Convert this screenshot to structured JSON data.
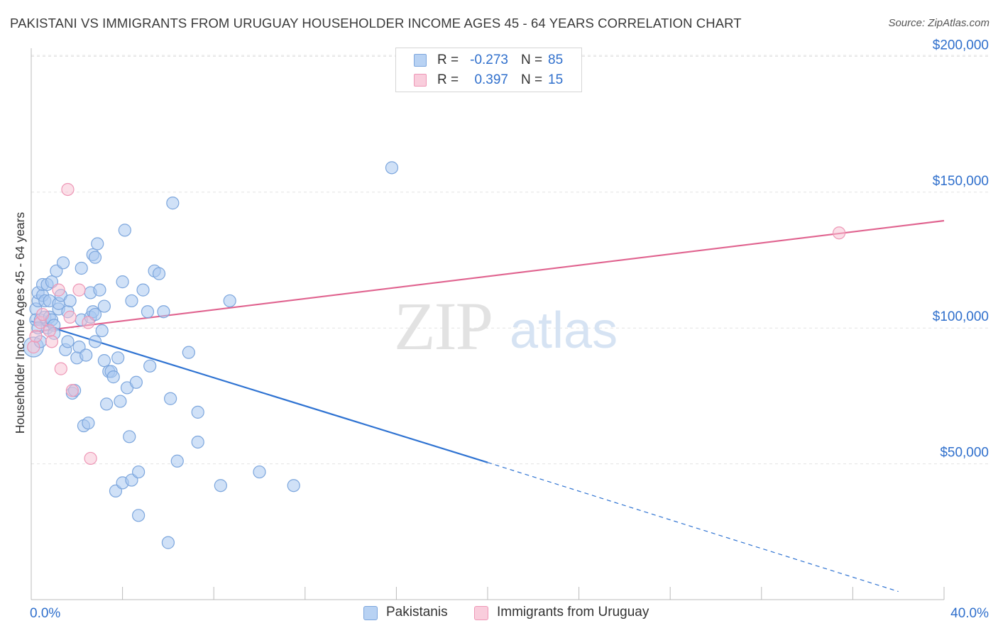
{
  "title": "PAKISTANI VS IMMIGRANTS FROM URUGUAY HOUSEHOLDER INCOME AGES 45 - 64 YEARS CORRELATION CHART",
  "source": "Source: ZipAtlas.com",
  "watermark": {
    "zip": "ZIP",
    "atlas": "atlas"
  },
  "legend_top": {
    "rows": [
      {
        "r_label": "R =",
        "r_value": "-0.273",
        "n_label": "N =",
        "n_value": "85"
      },
      {
        "r_label": "R =",
        "r_value": "0.397",
        "n_label": "N =",
        "n_value": "15"
      }
    ]
  },
  "colors": {
    "blue_fill": "#a9c8f0",
    "blue_stroke": "#7ca6dd",
    "blue_line": "#2f73d2",
    "pink_fill": "#f7c0d2",
    "pink_stroke": "#ee97b6",
    "pink_line": "#e0638f",
    "axis_text": "#2f6fcc",
    "grid": "#e3e3e3"
  },
  "chart_data": {
    "type": "scatter",
    "title": "PAKISTANI VS IMMIGRANTS FROM URUGUAY HOUSEHOLDER INCOME AGES 45 - 64 YEARS CORRELATION CHART",
    "xlabel": "",
    "ylabel": "Householder Income Ages 45 - 64 years",
    "xlim": [
      0,
      40
    ],
    "ylim": [
      0,
      210000
    ],
    "x_tick_labels": [
      "0.0%",
      "40.0%"
    ],
    "y_ticks": [
      50000,
      100000,
      150000,
      200000
    ],
    "y_tick_labels": [
      "$50,000",
      "$100,000",
      "$150,000",
      "$200,000"
    ],
    "grid": true,
    "legend_position": "bottom",
    "series": [
      {
        "name": "Pakistanis",
        "r": -0.273,
        "n": 85,
        "trend": {
          "x": [
            0,
            20
          ],
          "y": [
            102500,
            50500
          ],
          "dashed_to": [
            38,
            3000
          ]
        },
        "points": [
          [
            0.1,
            93000
          ],
          [
            0.2,
            107000
          ],
          [
            0.2,
            103000
          ],
          [
            0.3,
            110000
          ],
          [
            0.3,
            113000
          ],
          [
            0.4,
            95000
          ],
          [
            0.4,
            103000
          ],
          [
            0.5,
            112000
          ],
          [
            0.5,
            116000
          ],
          [
            0.6,
            104000
          ],
          [
            0.6,
            110000
          ],
          [
            0.7,
            100000
          ],
          [
            0.7,
            116000
          ],
          [
            0.8,
            110000
          ],
          [
            0.8,
            104000
          ],
          [
            0.9,
            103000
          ],
          [
            0.9,
            117000
          ],
          [
            1.0,
            101000
          ],
          [
            1.1,
            121000
          ],
          [
            1.2,
            107000
          ],
          [
            1.2,
            109000
          ],
          [
            1.3,
            112000
          ],
          [
            1.4,
            124000
          ],
          [
            1.5,
            92000
          ],
          [
            1.6,
            95000
          ],
          [
            1.6,
            106000
          ],
          [
            1.7,
            110000
          ],
          [
            1.8,
            76000
          ],
          [
            1.9,
            77000
          ],
          [
            2.0,
            89000
          ],
          [
            2.1,
            93000
          ],
          [
            2.2,
            103000
          ],
          [
            2.2,
            122000
          ],
          [
            2.3,
            64000
          ],
          [
            2.5,
            65000
          ],
          [
            2.6,
            104000
          ],
          [
            2.6,
            113000
          ],
          [
            2.7,
            106000
          ],
          [
            2.7,
            127000
          ],
          [
            2.8,
            105000
          ],
          [
            2.8,
            126000
          ],
          [
            2.8,
            95000
          ],
          [
            2.9,
            131000
          ],
          [
            3.0,
            114000
          ],
          [
            3.1,
            99000
          ],
          [
            3.2,
            108000
          ],
          [
            3.2,
            88000
          ],
          [
            3.3,
            72000
          ],
          [
            3.4,
            84000
          ],
          [
            3.5,
            84000
          ],
          [
            3.6,
            82000
          ],
          [
            3.7,
            40000
          ],
          [
            3.8,
            89000
          ],
          [
            3.9,
            73000
          ],
          [
            4.0,
            117000
          ],
          [
            4.0,
            43000
          ],
          [
            4.1,
            136000
          ],
          [
            4.2,
            78000
          ],
          [
            4.3,
            60000
          ],
          [
            4.4,
            110000
          ],
          [
            4.4,
            44000
          ],
          [
            4.6,
            80000
          ],
          [
            4.7,
            47000
          ],
          [
            4.7,
            31000
          ],
          [
            4.9,
            114000
          ],
          [
            5.1,
            106000
          ],
          [
            5.2,
            86000
          ],
          [
            5.4,
            121000
          ],
          [
            5.6,
            120000
          ],
          [
            5.8,
            106000
          ],
          [
            6.0,
            21000
          ],
          [
            6.1,
            74000
          ],
          [
            6.2,
            146000
          ],
          [
            6.4,
            51000
          ],
          [
            6.9,
            91000
          ],
          [
            7.3,
            69000
          ],
          [
            7.3,
            58000
          ],
          [
            8.3,
            42000
          ],
          [
            8.7,
            110000
          ],
          [
            10.0,
            47000
          ],
          [
            11.5,
            42000
          ],
          [
            15.8,
            159000
          ],
          [
            0.3,
            100000
          ],
          [
            1.0,
            98000
          ],
          [
            2.4,
            90000
          ]
        ]
      },
      {
        "name": "Immigrants from Uruguay",
        "r": 0.397,
        "n": 15,
        "trend": {
          "x": [
            0,
            40
          ],
          "y": [
            98500,
            139500
          ]
        },
        "points": [
          [
            0.1,
            93000
          ],
          [
            0.2,
            97000
          ],
          [
            0.4,
            102000
          ],
          [
            0.5,
            105000
          ],
          [
            0.8,
            99000
          ],
          [
            0.9,
            95000
          ],
          [
            1.2,
            114000
          ],
          [
            1.3,
            85000
          ],
          [
            1.6,
            151000
          ],
          [
            1.7,
            104000
          ],
          [
            1.8,
            77000
          ],
          [
            2.1,
            114000
          ],
          [
            2.5,
            102000
          ],
          [
            2.6,
            52000
          ],
          [
            35.4,
            135000
          ]
        ]
      }
    ]
  }
}
